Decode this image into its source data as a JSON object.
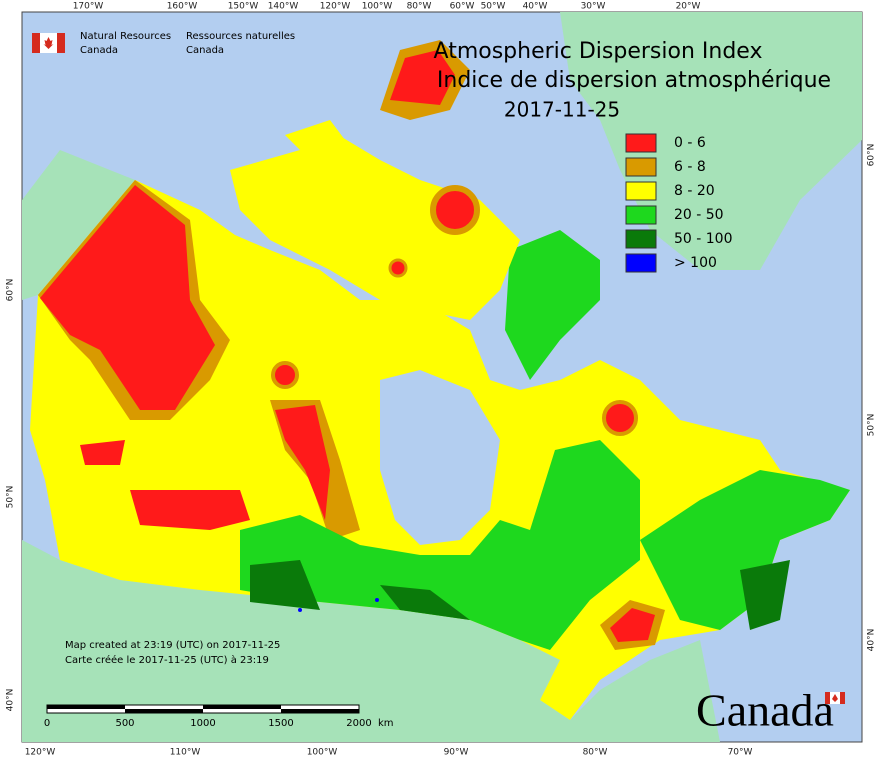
{
  "agency": {
    "english": [
      "Natural Resources",
      "Canada"
    ],
    "french": [
      "Ressources naturelles",
      "Canada"
    ]
  },
  "title": [
    "Atmospheric Dispersion Index",
    "Indice de dispersion atmosphérique"
  ],
  "date": "2017-11-25",
  "legend": [
    {
      "label": "0 - 6",
      "color": "#ff1a1a"
    },
    {
      "label": "6 - 8",
      "color": "#d99a00"
    },
    {
      "label": "8 - 20",
      "color": "#ffff00"
    },
    {
      "label": "20 - 50",
      "color": "#1ed81e"
    },
    {
      "label": "50 - 100",
      "color": "#0a7a0a"
    },
    {
      "label": "> 100",
      "color": "#0000ff"
    }
  ],
  "graticule": {
    "top": [
      "170°W",
      "160°W",
      "150°W",
      "140°W",
      "120°W",
      "100°W",
      "80°W",
      "60°W",
      "50°W",
      "40°W",
      "30°W",
      "20°W"
    ],
    "bottom": [
      "120°W",
      "110°W",
      "100°W",
      "90°W",
      "80°W",
      "70°W"
    ],
    "left": [
      "60°N",
      "50°N",
      "40°N"
    ],
    "right": [
      "60°N",
      "50°N",
      "40°N"
    ]
  },
  "notes": [
    "Map created at 23:19 (UTC) on 2017-11-25",
    "Carte créée le 2017-11-25 (UTC) à 23:19"
  ],
  "scale": {
    "labels": [
      "0",
      "500",
      "1000",
      "1500",
      "2000"
    ],
    "unit": "km"
  },
  "wordmark": "Canada"
}
